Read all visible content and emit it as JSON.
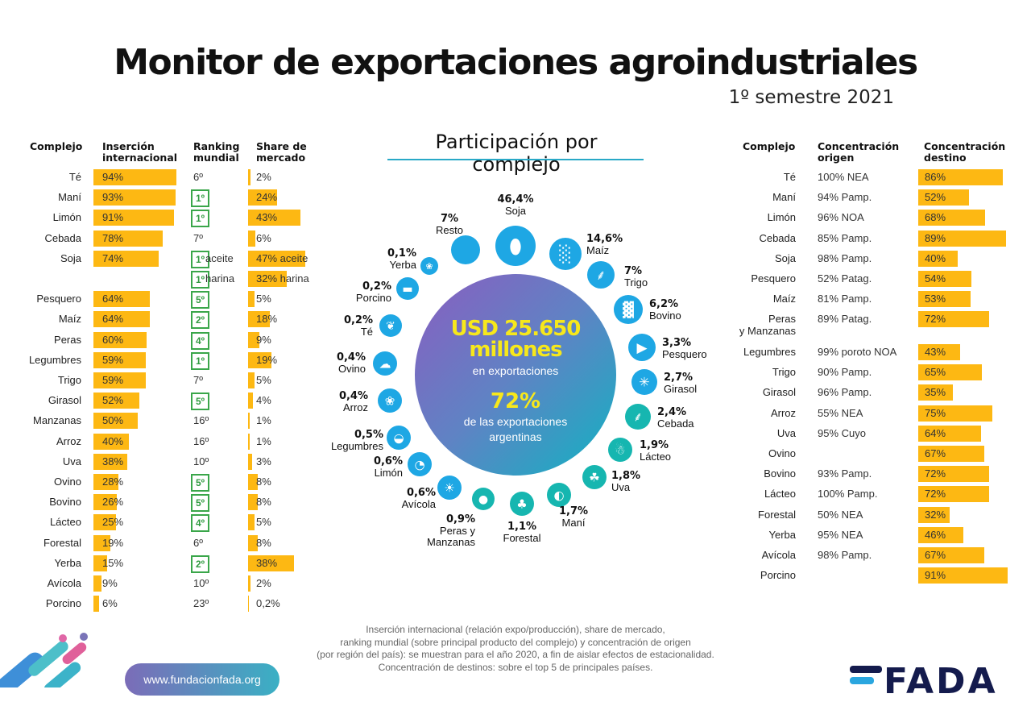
{
  "header": {
    "title": "Monitor de exportaciones agroindustriales",
    "subtitle": "1º semestre 2021"
  },
  "left_table": {
    "headers": {
      "complejo": "Complejo",
      "insercion": "Inserción internacional",
      "ranking": "Ranking mundial",
      "share": "Share de mercado"
    },
    "rows": [
      {
        "complejo": "Té",
        "insercion": 94,
        "insercion_label": "94%",
        "ranking": "6º",
        "ranking_highlight": false,
        "share": 2,
        "share_label": "2%"
      },
      {
        "complejo": "Maní",
        "insercion": 93,
        "insercion_label": "93%",
        "ranking": "1º",
        "ranking_highlight": true,
        "share": 24,
        "share_label": "24%"
      },
      {
        "complejo": "Limón",
        "insercion": 91,
        "insercion_label": "91%",
        "ranking": "1º",
        "ranking_highlight": true,
        "share": 43,
        "share_label": "43%"
      },
      {
        "complejo": "Cebada",
        "insercion": 78,
        "insercion_label": "78%",
        "ranking": "7º",
        "ranking_highlight": false,
        "share": 6,
        "share_label": "6%"
      },
      {
        "complejo": "Soja",
        "insercion": 74,
        "insercion_label": "74%",
        "ranking": "1º",
        "ranking_highlight": true,
        "ranking_suffix": "aceite",
        "share": 47,
        "share_label": "47% aceite"
      },
      {
        "complejo": "",
        "insercion": null,
        "insercion_label": "",
        "ranking": "1º",
        "ranking_highlight": true,
        "ranking_suffix": "harina",
        "share": 32,
        "share_label": "32% harina"
      },
      {
        "complejo": "Pesquero",
        "insercion": 64,
        "insercion_label": "64%",
        "ranking": "5º",
        "ranking_highlight": true,
        "share": 5,
        "share_label": "5%"
      },
      {
        "complejo": "Maíz",
        "insercion": 64,
        "insercion_label": "64%",
        "ranking": "2º",
        "ranking_highlight": true,
        "share": 18,
        "share_label": "18%"
      },
      {
        "complejo": "Peras",
        "insercion": 60,
        "insercion_label": "60%",
        "ranking": "4º",
        "ranking_highlight": true,
        "share": 9,
        "share_label": "9%"
      },
      {
        "complejo": "Legumbres",
        "insercion": 59,
        "insercion_label": "59%",
        "ranking": "1º",
        "ranking_highlight": true,
        "share": 19,
        "share_label": "19%"
      },
      {
        "complejo": "Trigo",
        "insercion": 59,
        "insercion_label": "59%",
        "ranking": "7º",
        "ranking_highlight": false,
        "share": 5,
        "share_label": "5%"
      },
      {
        "complejo": "Girasol",
        "insercion": 52,
        "insercion_label": "52%",
        "ranking": "5º",
        "ranking_highlight": true,
        "share": 4,
        "share_label": "4%"
      },
      {
        "complejo": "Manzanas",
        "insercion": 50,
        "insercion_label": "50%",
        "ranking": "16º",
        "ranking_highlight": false,
        "share": 1,
        "share_label": "1%"
      },
      {
        "complejo": "Arroz",
        "insercion": 40,
        "insercion_label": "40%",
        "ranking": "16º",
        "ranking_highlight": false,
        "share": 1,
        "share_label": "1%"
      },
      {
        "complejo": "Uva",
        "insercion": 38,
        "insercion_label": "38%",
        "ranking": "10º",
        "ranking_highlight": false,
        "share": 3,
        "share_label": "3%"
      },
      {
        "complejo": "Ovino",
        "insercion": 28,
        "insercion_label": "28%",
        "ranking": "5º",
        "ranking_highlight": true,
        "share": 8,
        "share_label": "8%"
      },
      {
        "complejo": "Bovino",
        "insercion": 26,
        "insercion_label": "26%",
        "ranking": "5º",
        "ranking_highlight": true,
        "share": 8,
        "share_label": "8%"
      },
      {
        "complejo": "Lácteo",
        "insercion": 25,
        "insercion_label": "25%",
        "ranking": "4º",
        "ranking_highlight": true,
        "share": 5,
        "share_label": "5%"
      },
      {
        "complejo": "Forestal",
        "insercion": 19,
        "insercion_label": "19%",
        "ranking": "6º",
        "ranking_highlight": false,
        "share": 8,
        "share_label": "8%"
      },
      {
        "complejo": "Yerba",
        "insercion": 15,
        "insercion_label": "15%",
        "ranking": "2º",
        "ranking_highlight": true,
        "share": 38,
        "share_label": "38%"
      },
      {
        "complejo": "Avícola",
        "insercion": 9,
        "insercion_label": "9%",
        "ranking": "10º",
        "ranking_highlight": false,
        "share": 2,
        "share_label": "2%"
      },
      {
        "complejo": "Porcino",
        "insercion": 6,
        "insercion_label": "6%",
        "ranking": "23º",
        "ranking_highlight": false,
        "share": 0.2,
        "share_label": "0,2%"
      }
    ]
  },
  "right_table": {
    "headers": {
      "complejo": "Complejo",
      "origen": "Concentración origen",
      "destino": "Concentración destino"
    },
    "rows": [
      {
        "complejo": "Té",
        "origen": "100% NEA",
        "destino": 86,
        "destino_label": "86%"
      },
      {
        "complejo": "Maní",
        "origen": "94% Pamp.",
        "destino": 52,
        "destino_label": "52%"
      },
      {
        "complejo": "Limón",
        "origen": "96% NOA",
        "destino": 68,
        "destino_label": "68%"
      },
      {
        "complejo": "Cebada",
        "origen": "85% Pamp.",
        "destino": 89,
        "destino_label": "89%"
      },
      {
        "complejo": "Soja",
        "origen": "98% Pamp.",
        "destino": 40,
        "destino_label": "40%"
      },
      {
        "complejo": "Pesquero",
        "origen": "52% Patag.",
        "destino": 54,
        "destino_label": "54%"
      },
      {
        "complejo": "Maíz",
        "origen": "81% Pamp.",
        "destino": 53,
        "destino_label": "53%"
      },
      {
        "complejo": "Peras y Manzanas",
        "origen": "89% Patag.",
        "destino": 72,
        "destino_label": "72%"
      },
      {
        "complejo": "Legumbres",
        "origen": "99% poroto NOA",
        "destino": 43,
        "destino_label": "43%"
      },
      {
        "complejo": "Trigo",
        "origen": "90% Pamp.",
        "destino": 65,
        "destino_label": "65%"
      },
      {
        "complejo": "Girasol",
        "origen": "96% Pamp.",
        "destino": 35,
        "destino_label": "35%"
      },
      {
        "complejo": "Arroz",
        "origen": "55% NEA",
        "destino": 75,
        "destino_label": "75%"
      },
      {
        "complejo": "Uva",
        "origen": "95% Cuyo",
        "destino": 64,
        "destino_label": "64%"
      },
      {
        "complejo": "Ovino",
        "origen": "",
        "destino": 67,
        "destino_label": "67%"
      },
      {
        "complejo": "Bovino",
        "origen": "93% Pamp.",
        "destino": 72,
        "destino_label": "72%"
      },
      {
        "complejo": "Lácteo",
        "origen": "100% Pamp.",
        "destino": 72,
        "destino_label": "72%"
      },
      {
        "complejo": "Forestal",
        "origen": "50% NEA",
        "destino": 32,
        "destino_label": "32%"
      },
      {
        "complejo": "Yerba",
        "origen": "95% NEA",
        "destino": 46,
        "destino_label": "46%"
      },
      {
        "complejo": "Avícola",
        "origen": "98% Pamp.",
        "destino": 67,
        "destino_label": "67%"
      },
      {
        "complejo": "Porcino",
        "origen": "",
        "destino": 91,
        "destino_label": "91%"
      }
    ]
  },
  "center": {
    "section_title": "Participación por complejo",
    "usd_line1": "USD 25.650",
    "usd_line2": "millones",
    "en_exportaciones": "en exportaciones",
    "pct": "72%",
    "de_las_line1": "de las exportaciones",
    "de_las_line2": "argentinas"
  },
  "chart_data": {
    "type": "bubble",
    "title": "Participación por complejo",
    "total_label": "USD 25.650 millones en exportaciones",
    "share_of_argentine_exports": 72,
    "categories": [
      "Soja",
      "Maíz",
      "Trigo",
      "Bovino",
      "Pesquero",
      "Girasol",
      "Cebada",
      "Lácteo",
      "Uva",
      "Maní",
      "Forestal",
      "Peras y Manzanas",
      "Avícola",
      "Limón",
      "Legumbres",
      "Arroz",
      "Ovino",
      "Té",
      "Porcino",
      "Yerba",
      "Resto"
    ],
    "values": [
      46.4,
      14.6,
      7,
      6.2,
      3.3,
      2.7,
      2.4,
      1.9,
      1.8,
      1.7,
      1.1,
      0.9,
      0.6,
      0.6,
      0.5,
      0.4,
      0.4,
      0.2,
      0.2,
      0.1,
      7
    ],
    "labels": [
      "46,4%",
      "14,6%",
      "7%",
      "6,2%",
      "3,3%",
      "2,7%",
      "2,4%",
      "1,9%",
      "1,8%",
      "1,7%",
      "1,1%",
      "0,9%",
      "0,6%",
      "0,6%",
      "0,5%",
      "0,4%",
      "0,4%",
      "0,2%",
      "0,2%",
      "0,1%",
      "7%"
    ],
    "icons": [
      "soybean-icon",
      "corn-icon",
      "wheat-icon",
      "cow-icon",
      "fish-icon",
      "sunflower-icon",
      "barley-icon",
      "dairy-cow-icon",
      "grape-icon",
      "peanut-icon",
      "trees-icon",
      "apple-icon",
      "chicken-icon",
      "lemon-icon",
      "bean-icon",
      "rice-icon",
      "sheep-icon",
      "tea-icon",
      "pig-icon",
      "yerba-icon",
      ""
    ],
    "unit": "%"
  },
  "footnote": [
    "Inserción internacional (relación expo/producción), share de mercado,",
    "ranking mundial (sobre principal producto del complejo) y concentración de origen",
    "(por región del país): se muestran para el año 2020, a fin de aislar efectos de estacionalidad.",
    "Concentración de destinos: sobre el top 5 de principales países."
  ],
  "footer": {
    "website": "www.fundacionfada.org",
    "logo": "FADA"
  },
  "colors": {
    "bar": "#fdb813",
    "rank_highlight": "#3aa64a",
    "bubble_blue": "#1ea7e4",
    "bubble_teal": "#16b6b0",
    "headline_yellow": "#f7e81b",
    "logo_navy": "#141b4d"
  }
}
